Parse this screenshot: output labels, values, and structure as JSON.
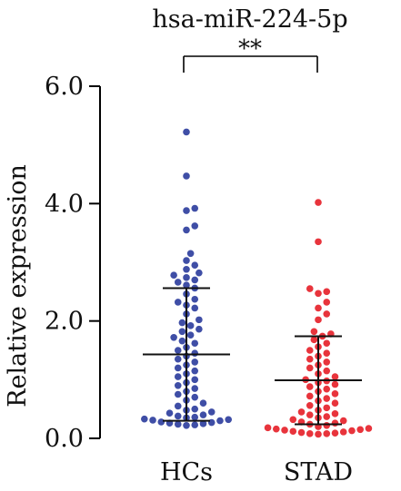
{
  "chart_data": {
    "type": "scatter",
    "title": "hsa-miR-224-5p",
    "xlabel": "",
    "ylabel": "Relative expression",
    "ylim": [
      0,
      6.0
    ],
    "yticks": [
      "0.0",
      "2.0",
      "4.0",
      "6.0"
    ],
    "categories": [
      "HCs",
      "STAD"
    ],
    "significance": "**",
    "grid": false,
    "series": [
      {
        "color": "#3f4ea6",
        "values": [
          5.22,
          4.47,
          3.92,
          3.88,
          3.62,
          3.55,
          3.15,
          3.03,
          2.95,
          2.88,
          2.82,
          2.78,
          2.74,
          2.7,
          2.66,
          2.61,
          2.56,
          2.46,
          2.37,
          2.32,
          2.27,
          2.22,
          2.12,
          2.02,
          1.97,
          1.92,
          1.86,
          1.82,
          1.76,
          1.72,
          1.66,
          1.62,
          1.55,
          1.5,
          1.45,
          1.4,
          1.35,
          1.3,
          1.25,
          1.2,
          1.15,
          1.1,
          1.05,
          1.0,
          0.95,
          0.9,
          0.85,
          0.8,
          0.75,
          0.7,
          0.65,
          0.6,
          0.55,
          0.5,
          0.48,
          0.45,
          0.43,
          0.4,
          0.38,
          0.36,
          0.35,
          0.33,
          0.32,
          0.31,
          0.3,
          0.28,
          0.27,
          0.26,
          0.25,
          0.24,
          0.23,
          0.22
        ],
        "mean": 1.43,
        "sd_upper": 2.56,
        "sd_lower": 0.3
      },
      {
        "color": "#e8343c",
        "values": [
          4.02,
          3.35,
          2.55,
          2.5,
          2.47,
          2.32,
          2.22,
          2.12,
          2.02,
          1.82,
          1.78,
          1.74,
          1.68,
          1.62,
          1.56,
          1.5,
          1.45,
          1.4,
          1.35,
          1.3,
          1.25,
          1.2,
          1.15,
          1.1,
          1.05,
          1.0,
          0.98,
          0.95,
          0.92,
          0.88,
          0.84,
          0.8,
          0.76,
          0.72,
          0.68,
          0.64,
          0.6,
          0.56,
          0.52,
          0.48,
          0.45,
          0.42,
          0.4,
          0.37,
          0.35,
          0.32,
          0.3,
          0.28,
          0.26,
          0.24,
          0.22,
          0.2,
          0.18,
          0.17,
          0.16,
          0.15,
          0.14,
          0.13,
          0.12,
          0.11,
          0.1,
          0.09,
          0.08,
          0.08,
          0.07
        ],
        "mean": 0.99,
        "sd_upper": 1.74,
        "sd_lower": 0.24
      }
    ]
  }
}
